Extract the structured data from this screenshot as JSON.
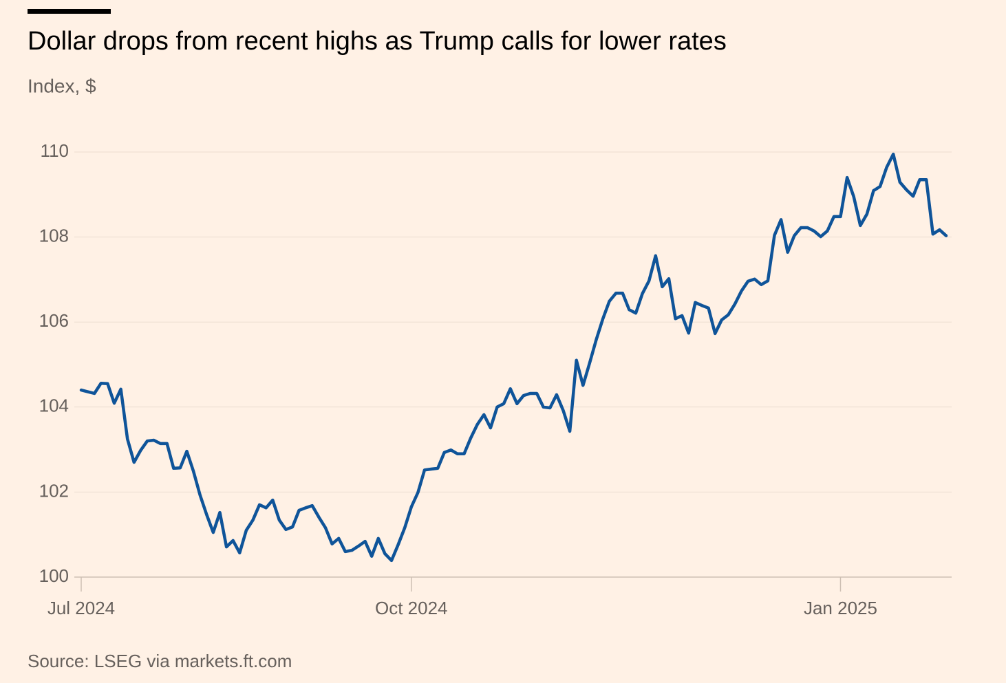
{
  "chart_data": {
    "type": "line",
    "title": "Dollar drops from recent highs as Trump calls for lower rates",
    "subtitle": "Index, $",
    "source": "Source: LSEG via markets.ft.com",
    "categories": [
      "Jul 2024",
      null,
      null,
      null,
      null,
      null,
      null,
      null,
      null,
      null,
      null,
      null,
      null,
      null,
      null,
      null,
      null,
      null,
      null,
      null,
      null,
      null,
      null,
      null,
      null,
      null,
      null,
      null,
      null,
      null,
      null,
      null,
      null,
      null,
      null,
      null,
      null,
      null,
      null,
      null,
      null,
      null,
      null,
      null,
      null,
      null,
      null,
      null,
      null,
      null,
      "Oct 2024",
      null,
      null,
      null,
      null,
      null,
      null,
      null,
      null,
      null,
      null,
      null,
      null,
      null,
      null,
      null,
      null,
      null,
      null,
      null,
      null,
      null,
      null,
      null,
      null,
      null,
      null,
      null,
      null,
      null,
      null,
      null,
      null,
      null,
      null,
      null,
      null,
      null,
      null,
      null,
      null,
      null,
      null,
      null,
      null,
      null,
      null,
      null,
      null,
      null,
      null,
      null,
      null,
      null,
      null,
      null,
      null,
      null,
      null,
      null,
      null,
      null,
      null,
      null,
      null,
      "Jan 2025",
      null,
      null,
      null,
      null,
      null,
      null,
      null,
      null,
      null,
      null,
      null,
      null,
      null,
      null,
      null,
      null
    ],
    "series": [
      {
        "name": "Dollar index",
        "color": "#0f5499",
        "values": [
          104.4,
          104.36,
          104.32,
          104.56,
          104.55,
          104.09,
          104.42,
          103.25,
          102.7,
          102.98,
          103.2,
          103.22,
          103.14,
          103.14,
          102.56,
          102.57,
          102.96,
          102.49,
          101.93,
          101.47,
          101.05,
          101.52,
          100.71,
          100.86,
          100.57,
          101.1,
          101.34,
          101.7,
          101.63,
          101.81,
          101.34,
          101.12,
          101.18,
          101.57,
          101.63,
          101.68,
          101.41,
          101.16,
          100.78,
          100.91,
          100.6,
          100.63,
          100.73,
          100.84,
          100.49,
          100.91,
          100.55,
          100.39,
          100.76,
          101.16,
          101.65,
          101.99,
          102.52,
          102.54,
          102.56,
          102.93,
          102.99,
          102.9,
          102.9,
          103.27,
          103.59,
          103.82,
          103.51,
          104.0,
          104.08,
          104.43,
          104.08,
          104.27,
          104.32,
          104.32,
          104.0,
          103.98,
          104.29,
          103.92,
          103.43,
          105.1,
          104.51,
          105.03,
          105.58,
          106.07,
          106.49,
          106.68,
          106.68,
          106.29,
          106.21,
          106.67,
          106.97,
          107.56,
          106.83,
          107.02,
          106.08,
          106.15,
          105.74,
          106.46,
          106.39,
          106.33,
          105.73,
          106.05,
          106.17,
          106.42,
          106.73,
          106.96,
          107.01,
          106.88,
          106.97,
          108.04,
          108.41,
          107.64,
          108.03,
          108.22,
          108.22,
          108.14,
          108.01,
          108.14,
          108.48,
          108.48,
          109.4,
          108.95,
          108.27,
          108.54,
          109.09,
          109.19,
          109.64,
          109.95,
          109.29,
          109.11,
          108.96,
          109.35,
          109.35,
          108.07,
          108.17,
          108.03
        ]
      }
    ],
    "ylim": [
      100,
      110
    ],
    "yticks": [
      100,
      102,
      104,
      106,
      108,
      110
    ],
    "grid": true
  }
}
